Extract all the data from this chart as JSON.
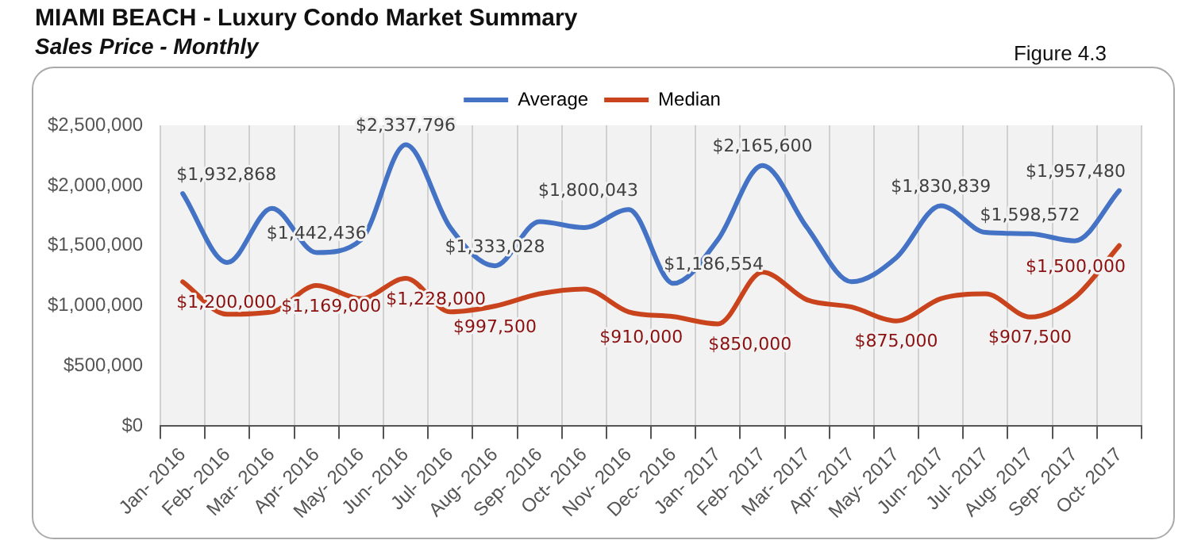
{
  "chart_data": {
    "type": "line",
    "title": "MIAMI BEACH - Luxury Condo Market Summary",
    "subtitle": "Sales Price - Monthly",
    "annotations": [
      "Figure 4.3"
    ],
    "categories": [
      "Jan- 2016",
      "Feb- 2016",
      "Mar- 2016",
      "Apr- 2016",
      "May- 2016",
      "Jun- 2016",
      "Jul- 2016",
      "Aug- 2016",
      "Sep- 2016",
      "Oct- 2016",
      "Nov- 2016",
      "Dec- 2016",
      "Jan- 2017",
      "Feb- 2017",
      "Mar- 2017",
      "Apr- 2017",
      "May- 2017",
      "Jun- 2017",
      "Jul- 2017",
      "Aug- 2017",
      "Sep- 2017",
      "Oct- 2017"
    ],
    "series": [
      {
        "name": "Average",
        "color": "#4472c4",
        "values": [
          1932868,
          1360000,
          1810000,
          1442436,
          1550000,
          2337796,
          1650000,
          1333028,
          1700000,
          1650000,
          1800043,
          1186554,
          1550000,
          2165600,
          1650000,
          1200000,
          1400000,
          1830839,
          1610000,
          1598572,
          1540000,
          1957480
        ],
        "value_labels": [
          "$1,932,868",
          null,
          null,
          "$1,442,436",
          null,
          "$2,337,796",
          null,
          "$1,333,028",
          null,
          null,
          "$1,800,043",
          "$1,186,554",
          null,
          "$2,165,600",
          null,
          null,
          null,
          "$1,830,839",
          null,
          "$1,598,572",
          null,
          "$1,957,480"
        ]
      },
      {
        "name": "Median",
        "color": "#c9431c",
        "values": [
          1200000,
          930000,
          950000,
          1169000,
          1060000,
          1228000,
          950000,
          997500,
          1100000,
          1140000,
          950000,
          910000,
          850000,
          1280000,
          1050000,
          990000,
          875000,
          1060000,
          1100000,
          907500,
          1070000,
          1500000
        ],
        "value_labels": [
          "$1,200,000",
          null,
          null,
          "$1,169,000",
          null,
          "$1,228,000",
          null,
          "$997,500",
          null,
          null,
          null,
          "$910,000",
          "$850,000",
          null,
          null,
          null,
          "$875,000",
          null,
          null,
          "$907,500",
          null,
          "$1,500,000"
        ]
      }
    ],
    "ylim": [
      0,
      2500000
    ],
    "yticks": [
      {
        "value": 0,
        "label": "$0"
      },
      {
        "value": 500000,
        "label": "$500,000"
      },
      {
        "value": 1000000,
        "label": "$1,000,000"
      },
      {
        "value": 1500000,
        "label": "$1,500,000"
      },
      {
        "value": 2000000,
        "label": "$2,000,000"
      },
      {
        "value": 2500000,
        "label": "$2,500,000"
      }
    ],
    "grid": "x",
    "legend": "top",
    "marker": "none",
    "line_style": "solid"
  }
}
